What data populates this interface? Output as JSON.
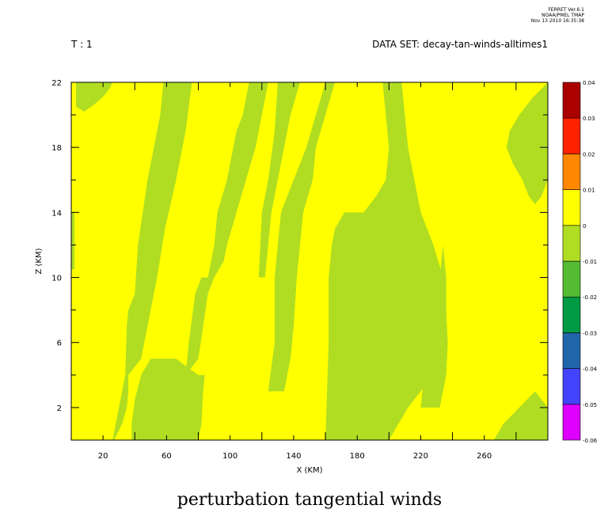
{
  "header": {
    "ferret_version": "FERRET  Ver.6.1",
    "ferret_org": "NOAA/PMEL TMAP",
    "ferret_date": "Nov 13 2010 16:35:38",
    "time_label": "T : 1",
    "dataset_label": "DATA SET: decay-tan-winds-alltimes1"
  },
  "chart_data": {
    "type": "heatmap",
    "title": "perturbation tangential winds",
    "xlabel": "X (KM)",
    "ylabel": "Z (KM)",
    "xlim": [
      0,
      300
    ],
    "ylim": [
      0,
      22
    ],
    "x_ticks": [
      20,
      60,
      100,
      140,
      180,
      220,
      260
    ],
    "y_ticks": [
      2,
      6,
      10,
      14,
      18,
      22
    ],
    "background_level": "0 to 0.01",
    "colorbar": {
      "levels": [
        "-0.06",
        "-0.05",
        "-0.04",
        "-0.03",
        "-0.02",
        "-0.01",
        "0",
        "0.01",
        "0.02",
        "0.03",
        "0.04"
      ],
      "colors": [
        "#dd00ff",
        "#4444ff",
        "#2266aa",
        "#009944",
        "#55bb33",
        "#b0dd22",
        "#ffff00",
        "#ff8800",
        "#ff2200",
        "#aa0000"
      ]
    },
    "regions": [
      {
        "level": "-0.01 to 0",
        "polygon": [
          [
            0,
            10.5
          ],
          [
            2,
            10.5
          ],
          [
            2,
            14
          ],
          [
            0,
            14
          ]
        ]
      },
      {
        "level": "-0.01 to 0",
        "polygon": [
          [
            3,
            20.5
          ],
          [
            8,
            20.2
          ],
          [
            14,
            20.6
          ],
          [
            20,
            21.1
          ],
          [
            24,
            21.6
          ],
          [
            26,
            22
          ],
          [
            3,
            22
          ]
        ]
      },
      {
        "level": "-0.01 to 0",
        "polygon": [
          [
            27,
            0
          ],
          [
            32,
            1
          ],
          [
            35,
            2
          ],
          [
            36,
            3
          ],
          [
            36,
            4
          ],
          [
            44,
            5
          ],
          [
            48,
            7
          ],
          [
            54,
            10
          ],
          [
            59,
            13
          ],
          [
            66,
            16
          ],
          [
            72,
            19
          ],
          [
            76,
            22
          ],
          [
            58,
            22
          ],
          [
            56,
            20
          ],
          [
            48,
            16
          ],
          [
            42,
            12
          ],
          [
            40,
            9
          ],
          [
            36,
            8
          ],
          [
            35,
            7
          ],
          [
            34,
            4
          ],
          [
            30,
            2
          ],
          [
            26,
            0
          ]
        ]
      },
      {
        "level": "-0.01 to 0",
        "polygon": [
          [
            38,
            0
          ],
          [
            80,
            0
          ],
          [
            82,
            1
          ],
          [
            83,
            3
          ],
          [
            84,
            4
          ],
          [
            80,
            4
          ],
          [
            66,
            5
          ],
          [
            50,
            5
          ],
          [
            44,
            4
          ],
          [
            40,
            2.5
          ],
          [
            38,
            1
          ]
        ]
      },
      {
        "level": "-0.01 to 0",
        "polygon": [
          [
            72,
            4
          ],
          [
            74,
            6
          ],
          [
            78,
            9
          ],
          [
            82,
            10
          ],
          [
            86,
            10
          ],
          [
            90,
            12
          ],
          [
            92,
            14
          ],
          [
            98,
            16
          ],
          [
            104,
            19
          ],
          [
            108,
            20
          ],
          [
            112,
            22
          ],
          [
            124,
            22
          ],
          [
            120,
            20
          ],
          [
            116,
            18
          ],
          [
            110,
            16
          ],
          [
            104,
            14
          ],
          [
            98,
            12
          ],
          [
            96,
            11
          ],
          [
            90,
            10
          ],
          [
            86,
            9
          ],
          [
            83,
            7
          ],
          [
            80,
            5
          ]
        ]
      },
      {
        "level": "-0.01 to 0",
        "polygon": [
          [
            118,
            10
          ],
          [
            120,
            14
          ],
          [
            124,
            16
          ],
          [
            128,
            19
          ],
          [
            130,
            22
          ],
          [
            144,
            22
          ],
          [
            138,
            20
          ],
          [
            134,
            18
          ],
          [
            130,
            16
          ],
          [
            126,
            14
          ],
          [
            124,
            12
          ],
          [
            122,
            10
          ]
        ]
      },
      {
        "level": "-0.01 to 0",
        "polygon": [
          [
            124,
            3
          ],
          [
            128,
            6
          ],
          [
            128,
            10
          ],
          [
            132,
            14
          ],
          [
            140,
            16
          ],
          [
            148,
            18
          ],
          [
            154,
            20
          ],
          [
            160,
            22
          ],
          [
            166,
            22
          ],
          [
            160,
            20
          ],
          [
            154,
            18
          ],
          [
            152,
            16
          ],
          [
            146,
            14
          ],
          [
            144,
            12
          ],
          [
            142,
            10
          ],
          [
            140,
            7
          ],
          [
            138,
            5
          ],
          [
            134,
            3
          ]
        ]
      },
      {
        "level": "-0.01 to 0",
        "polygon": [
          [
            160,
            0
          ],
          [
            200,
            0
          ],
          [
            206,
            1
          ],
          [
            212,
            2
          ],
          [
            220,
            3
          ],
          [
            228,
            4
          ],
          [
            234,
            5
          ],
          [
            236,
            6
          ],
          [
            236,
            8
          ],
          [
            234,
            10
          ],
          [
            228,
            12
          ],
          [
            220,
            14
          ],
          [
            216,
            16
          ],
          [
            212,
            18
          ],
          [
            210,
            20
          ],
          [
            208,
            22
          ],
          [
            196,
            22
          ],
          [
            198,
            20
          ],
          [
            200,
            18
          ],
          [
            198,
            16
          ],
          [
            192,
            15
          ],
          [
            184,
            14
          ],
          [
            172,
            14
          ],
          [
            166,
            13
          ],
          [
            164,
            12
          ],
          [
            162,
            10
          ],
          [
            162,
            6
          ],
          [
            161,
            3
          ]
        ]
      },
      {
        "level": "-0.01 to 0",
        "polygon": [
          [
            220,
            2
          ],
          [
            232,
            2
          ],
          [
            236,
            4
          ],
          [
            237,
            6
          ],
          [
            236,
            8
          ],
          [
            236,
            10
          ],
          [
            234,
            12
          ],
          [
            232,
            10
          ],
          [
            230,
            8
          ],
          [
            226,
            6
          ],
          [
            222,
            4
          ]
        ]
      },
      {
        "level": "-0.01 to 0",
        "polygon": [
          [
            266,
            0
          ],
          [
            300,
            0
          ],
          [
            300,
            2
          ],
          [
            292,
            3
          ],
          [
            282,
            2
          ],
          [
            272,
            1
          ]
        ]
      },
      {
        "level": "-0.01 to 0",
        "polygon": [
          [
            274,
            18
          ],
          [
            276,
            19
          ],
          [
            282,
            20
          ],
          [
            290,
            21
          ],
          [
            300,
            22
          ],
          [
            300,
            16
          ],
          [
            296,
            15
          ],
          [
            292,
            14.5
          ],
          [
            288,
            15
          ],
          [
            284,
            16
          ],
          [
            278,
            17
          ]
        ]
      }
    ]
  }
}
